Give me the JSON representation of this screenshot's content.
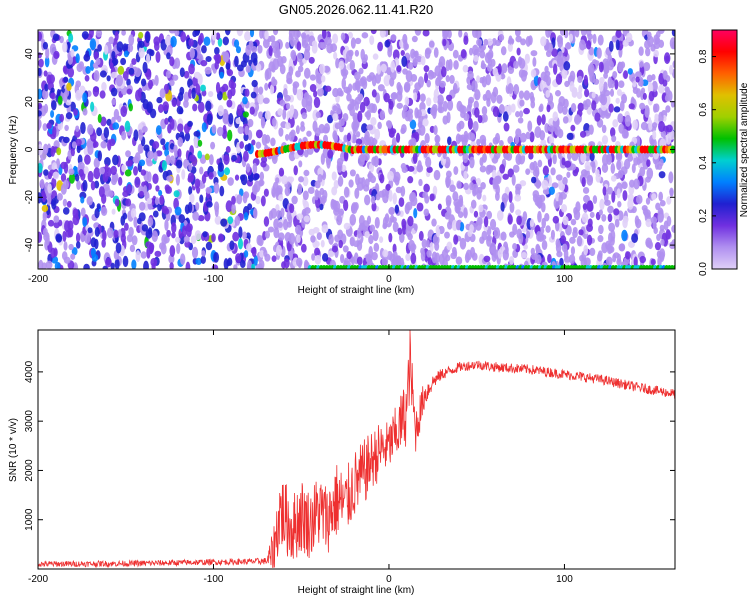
{
  "chart_data": [
    {
      "type": "heatmap",
      "title": "GN05.2026.062.11.41.R20",
      "xlabel": "Height of straight line (km)",
      "ylabel": "Frequency (Hz)",
      "xlim": [
        -200,
        163
      ],
      "ylim": [
        -50,
        50
      ],
      "xticks": [
        -200,
        -100,
        0,
        100
      ],
      "yticks": [
        -40,
        -20,
        0,
        20,
        40
      ],
      "colorbar": {
        "label": "Normalized spectral amplitude",
        "range": [
          0,
          0.9
        ],
        "ticks": [
          0,
          0.2,
          0.4,
          0.6,
          0.8
        ],
        "colormap": [
          "#e0d0f8",
          "#b090f0",
          "#7030e0",
          "#2020d0",
          "#0080ff",
          "#00d0d0",
          "#00c000",
          "#a0d000",
          "#e0c000",
          "#ff6000",
          "#ff0000",
          "#ff0060"
        ]
      },
      "features": [
        {
          "name": "zero-frequency carrier line",
          "frequency_hz": 0,
          "x_start": -75,
          "x_end": 163,
          "peak_amplitude": 0.85
        },
        {
          "name": "aliased line at -50 Hz",
          "frequency_hz": -50,
          "x_start": -45,
          "x_end": 163
        },
        {
          "name": "background noise",
          "x_range": [
            -200,
            -75
          ],
          "amplitude": 0.4
        }
      ]
    },
    {
      "type": "line",
      "title": "",
      "xlabel": "Height of straight line (km)",
      "ylabel": "SNR (10 * v/v)",
      "xlim": [
        -200,
        163
      ],
      "ylim": [
        0,
        4850
      ],
      "xticks": [
        -200,
        -100,
        0,
        100
      ],
      "yticks": [
        1000,
        2000,
        3000,
        4000
      ],
      "series": [
        {
          "name": "SNR",
          "color": "#ee3030",
          "x": [
            -200,
            -150,
            -100,
            -80,
            -70,
            -66,
            -62,
            -55,
            -50,
            -45,
            -40,
            -35,
            -30,
            -25,
            -20,
            -15,
            -10,
            -5,
            0,
            5,
            10,
            12,
            15,
            20,
            25,
            30,
            40,
            50,
            60,
            80,
            100,
            120,
            140,
            163
          ],
          "y": [
            100,
            110,
            140,
            150,
            160,
            300,
            1200,
            800,
            1100,
            900,
            1200,
            1000,
            1400,
            1300,
            1700,
            1900,
            2200,
            2400,
            2500,
            2800,
            3200,
            4200,
            2800,
            3500,
            3800,
            3950,
            4100,
            4150,
            4100,
            4050,
            3950,
            3850,
            3700,
            3550
          ],
          "noise_amplitude": [
            60,
            60,
            60,
            60,
            70,
            500,
            800,
            700,
            800,
            700,
            800,
            700,
            800,
            700,
            700,
            700,
            600,
            600,
            500,
            600,
            700,
            700,
            500,
            300,
            150,
            120,
            100,
            100,
            100,
            100,
            100,
            100,
            100,
            100
          ]
        }
      ]
    }
  ]
}
